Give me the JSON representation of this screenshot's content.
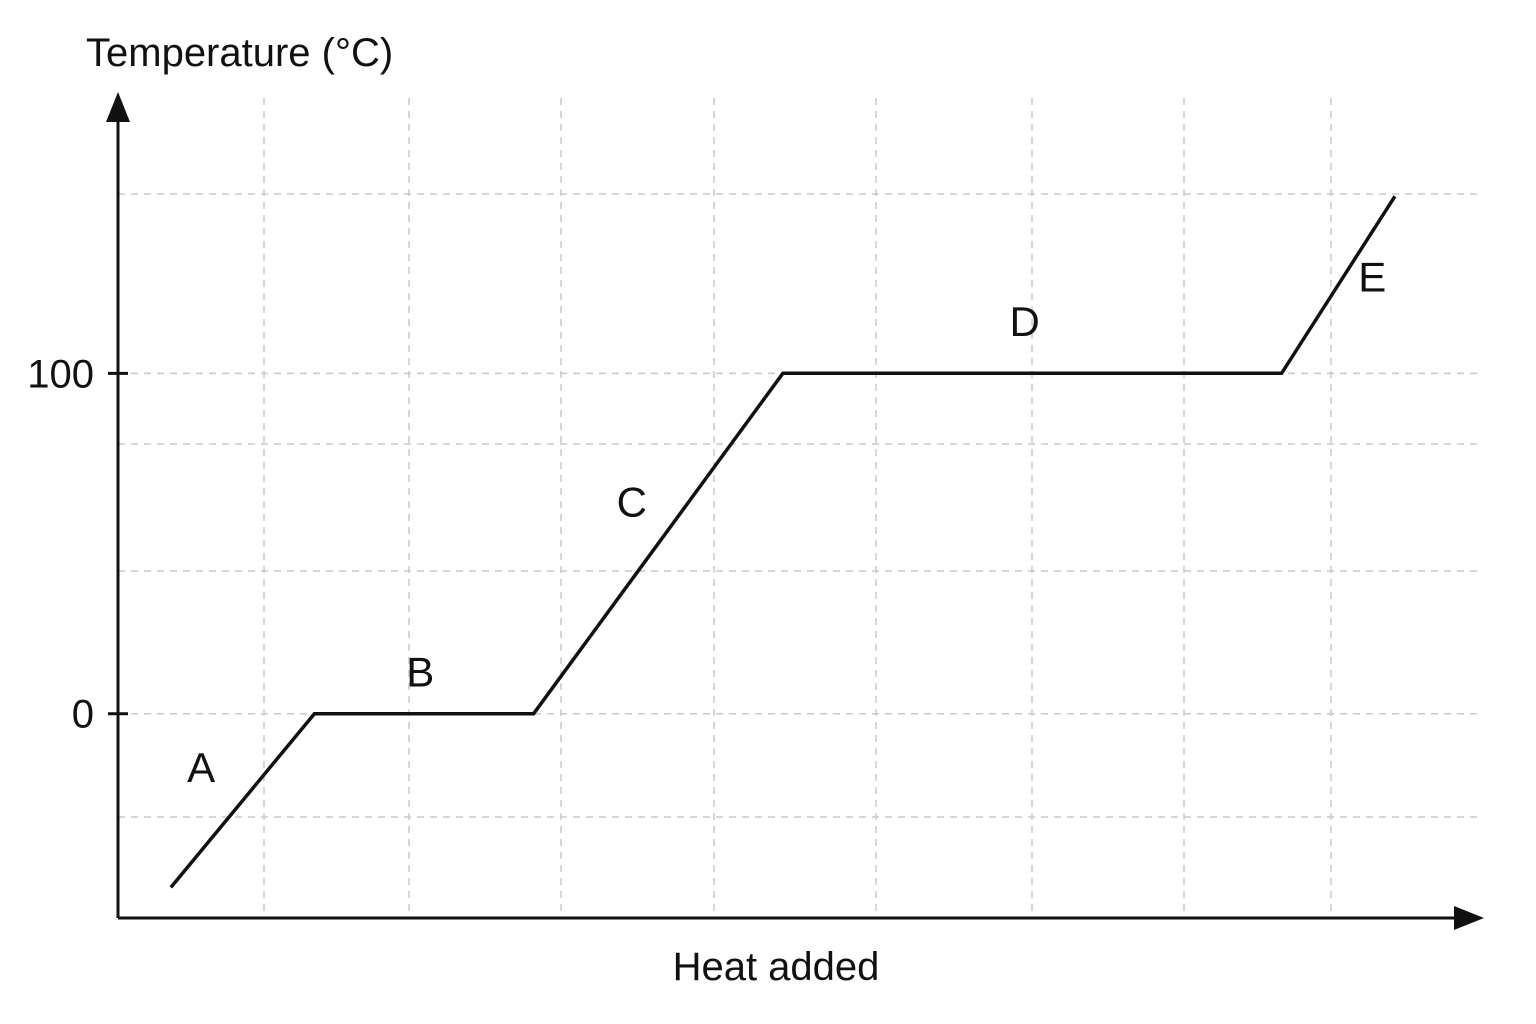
{
  "chart_data": {
    "type": "line",
    "title": "",
    "xlabel": "Heat added",
    "ylabel": "Temperature (°C)",
    "x_tick_labels": [],
    "y_ticks": [
      {
        "value": 0,
        "label": "0"
      },
      {
        "value": 100,
        "label": "100"
      }
    ],
    "xlim": [
      0,
      9.0
    ],
    "ylim": [
      -60,
      175
    ],
    "grid": true,
    "series": [
      {
        "points": [
          {
            "x": 0.35,
            "y": -51
          },
          {
            "x": 1.3,
            "y": 0
          },
          {
            "x": 2.75,
            "y": 0
          },
          {
            "x": 4.4,
            "y": 100
          },
          {
            "x": 7.7,
            "y": 100
          },
          {
            "x": 8.45,
            "y": 152
          }
        ]
      }
    ],
    "segment_labels": [
      {
        "label": "A",
        "x": 0.55,
        "y": -20
      },
      {
        "label": "B",
        "x": 2.0,
        "y": 8
      },
      {
        "label": "C",
        "x": 3.4,
        "y": 58
      },
      {
        "label": "D",
        "x": 6.0,
        "y": 111
      },
      {
        "label": "E",
        "x": 8.3,
        "y": 124
      }
    ]
  }
}
